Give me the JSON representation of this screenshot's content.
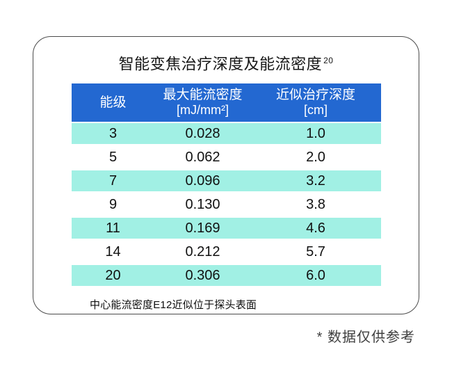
{
  "page": {
    "title": "智能变焦治疗深度及能流密度",
    "title_superscript": "20",
    "footnote": "中心能流密度E12近似位于探头表面",
    "disclaimer": "* 数据仅供参考"
  },
  "table": {
    "header": {
      "col1": "能级",
      "col2_line1": "最大能流密度",
      "col2_line2": "[mJ/mm²]",
      "col3_line1": "近似治疗深度",
      "col3_line2": "[cm]"
    },
    "rows": [
      {
        "level": "3",
        "fluence": "0.028",
        "depth": "1.0"
      },
      {
        "level": "5",
        "fluence": "0.062",
        "depth": "2.0"
      },
      {
        "level": "7",
        "fluence": "0.096",
        "depth": "3.2"
      },
      {
        "level": "9",
        "fluence": "0.130",
        "depth": "3.8"
      },
      {
        "level": "11",
        "fluence": "0.169",
        "depth": "4.6"
      },
      {
        "level": "14",
        "fluence": "0.212",
        "depth": "5.7"
      },
      {
        "level": "20",
        "fluence": "0.306",
        "depth": "6.0"
      }
    ]
  },
  "colors": {
    "header_bg": "#2368d1",
    "header_text": "#ffffff",
    "row_alt_bg": "#a1f0e4",
    "body_text": "#111111",
    "card_border": "#4b4b4b",
    "disclaimer_text": "#3f3f3f"
  },
  "chart_data": {
    "type": "table",
    "title": "智能变焦治疗深度及能流密度 (20)",
    "columns": [
      "能级",
      "最大能流密度 [mJ/mm²]",
      "近似治疗深度 [cm]"
    ],
    "rows": [
      [
        3,
        0.028,
        1.0
      ],
      [
        5,
        0.062,
        2.0
      ],
      [
        7,
        0.096,
        3.2
      ],
      [
        9,
        0.13,
        3.8
      ],
      [
        11,
        0.169,
        4.6
      ],
      [
        14,
        0.212,
        5.7
      ],
      [
        20,
        0.306,
        6.0
      ]
    ],
    "footnote": "中心能流密度E12近似位于探头表面",
    "annotation": "* 数据仅供参考",
    "layout": {
      "alt_row_fill": "#a1f0e4",
      "header_fill": "#2368d1"
    }
  }
}
